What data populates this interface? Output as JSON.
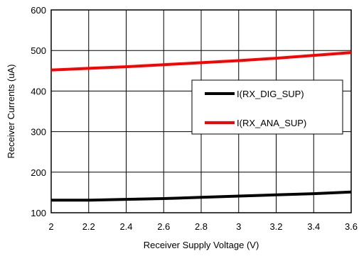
{
  "chart_data": {
    "type": "line",
    "title": "",
    "xlabel": "Receiver Supply Voltage (V)",
    "ylabel": "Receiver Currents (uA)",
    "xlim": [
      2,
      3.6
    ],
    "ylim": [
      100,
      600
    ],
    "xticks": [
      "2",
      "2.2",
      "2.4",
      "2.6",
      "2.8",
      "3",
      "3.2",
      "3.4",
      "3.6"
    ],
    "yticks": [
      "100",
      "200",
      "300",
      "400",
      "500",
      "600"
    ],
    "grid": true,
    "legend_position": "right",
    "series": [
      {
        "name": "I(RX_DIG_SUP)",
        "color": "#000000",
        "x": [
          2.0,
          2.2,
          2.4,
          2.6,
          2.8,
          3.0,
          3.2,
          3.4,
          3.6
        ],
        "y": [
          131,
          131,
          133,
          135,
          138,
          141,
          144,
          147,
          151
        ]
      },
      {
        "name": "I(RX_ANA_SUP)",
        "color": "#ff0000",
        "x": [
          2.0,
          2.2,
          2.4,
          2.6,
          2.8,
          3.0,
          3.2,
          3.4,
          3.6
        ],
        "y": [
          452,
          456,
          460,
          465,
          470,
          475,
          481,
          488,
          495
        ]
      }
    ]
  }
}
